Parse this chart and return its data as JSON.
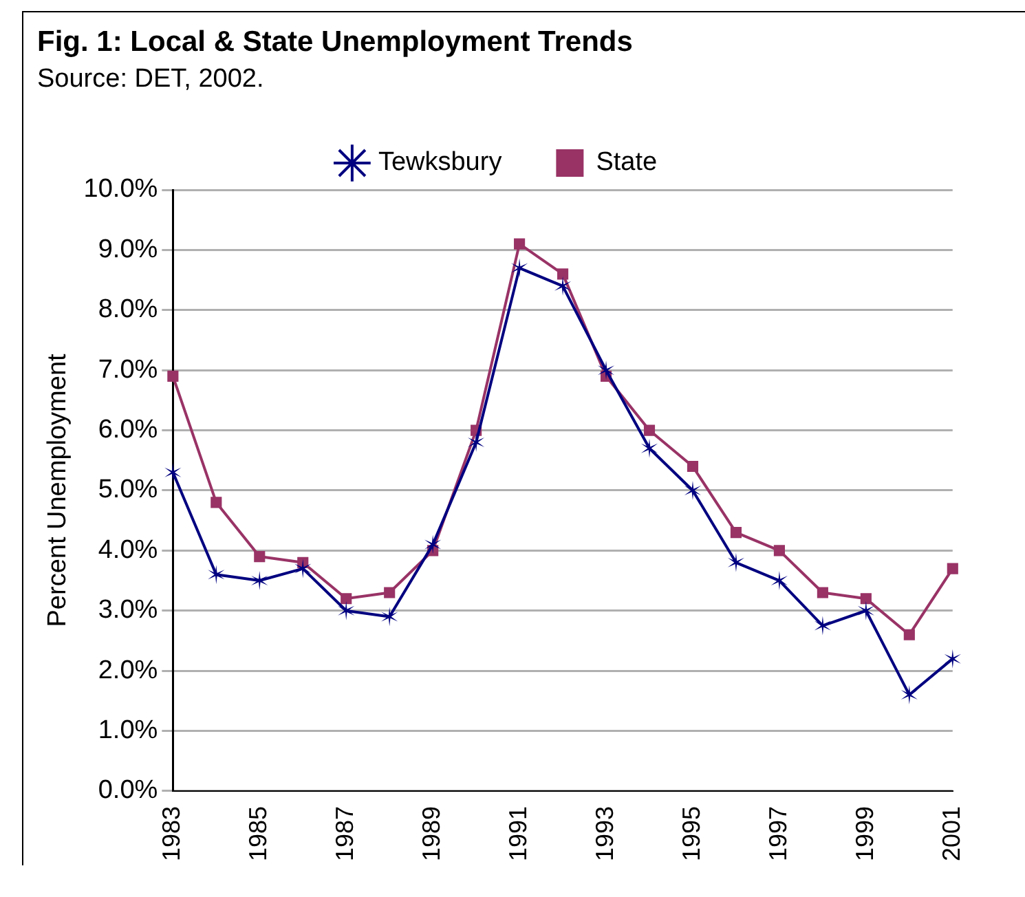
{
  "chart_data": {
    "type": "line",
    "title": "Fig. 1: Local & State Unemployment Trends",
    "annotations": [
      "Source: DET, 2002."
    ],
    "ylabel": "Percent Unemployment",
    "categories": [
      "1983",
      null,
      "1985",
      null,
      "1987",
      null,
      "1989",
      null,
      "1991",
      null,
      "1993",
      null,
      "1995",
      null,
      "1997",
      null,
      "1999",
      null,
      "2001"
    ],
    "series": [
      {
        "name": "Tewksbury",
        "color": "#000080",
        "marker": "cross",
        "values": [
          5.3,
          3.6,
          3.5,
          3.7,
          3.0,
          2.9,
          4.1,
          5.8,
          8.7,
          8.4,
          7.0,
          5.7,
          5.0,
          3.8,
          3.5,
          2.75,
          3.0,
          1.6,
          2.2
        ]
      },
      {
        "name": "State",
        "color": "#993366",
        "marker": "square",
        "values": [
          6.9,
          4.8,
          3.9,
          3.8,
          3.2,
          3.3,
          4.0,
          6.0,
          9.1,
          8.6,
          6.9,
          6.0,
          5.4,
          4.3,
          4.0,
          3.3,
          3.2,
          2.6,
          3.7
        ]
      }
    ],
    "ylim": [
      0,
      10
    ],
    "yticks": [
      {
        "value": 0,
        "label": "0.0%"
      },
      {
        "value": 1,
        "label": "1.0%"
      },
      {
        "value": 2,
        "label": "2.0%"
      },
      {
        "value": 3,
        "label": "3.0%"
      },
      {
        "value": 4,
        "label": "4.0%"
      },
      {
        "value": 5,
        "label": "5.0%"
      },
      {
        "value": 6,
        "label": "6.0%"
      },
      {
        "value": 7,
        "label": "7.0%"
      },
      {
        "value": 8,
        "label": "8.0%"
      },
      {
        "value": 9,
        "label": "9.0%"
      },
      {
        "value": 10,
        "label": "10.0%"
      }
    ],
    "grid": "y",
    "legend": "top",
    "line_style": "solid"
  }
}
